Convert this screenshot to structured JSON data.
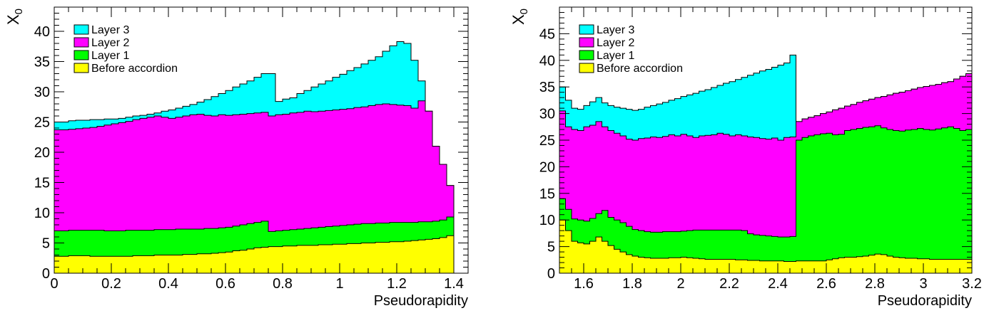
{
  "colors": {
    "layer3": "#00ffff",
    "layer2": "#ff00ff",
    "layer1": "#00ff00",
    "before": "#ffff00"
  },
  "chart_data": [
    {
      "type": "area",
      "ylabel_main": "X",
      "ylabel_sub": "0",
      "xlabel": "Pseudorapidity",
      "xlim": [
        0,
        1.45
      ],
      "ylim": [
        0,
        44
      ],
      "xticks": [
        "0",
        "0.2",
        "0.4",
        "0.6",
        "0.8",
        "1",
        "1.2",
        "1.4"
      ],
      "xtick_values": [
        0,
        0.2,
        0.4,
        0.6,
        0.8,
        1.0,
        1.2,
        1.4
      ],
      "yticks": [
        "0",
        "5",
        "10",
        "15",
        "20",
        "25",
        "30",
        "35",
        "40"
      ],
      "ytick_values": [
        0,
        5,
        10,
        15,
        20,
        25,
        30,
        35,
        40
      ],
      "bin_width": 0.025,
      "legend_position": "top-left",
      "series": [
        {
          "name": "Layer 3",
          "key": "layer3",
          "values": [
            25.0,
            25.0,
            25.2,
            25.3,
            25.3,
            25.4,
            25.4,
            25.5,
            25.5,
            25.6,
            25.8,
            26.0,
            26.1,
            26.3,
            26.5,
            26.8,
            27.0,
            27.3,
            27.6,
            27.9,
            28.3,
            28.7,
            29.2,
            29.7,
            30.2,
            30.8,
            31.3,
            31.8,
            32.4,
            33.0,
            33.0,
            28.4,
            28.8,
            29.0,
            29.7,
            30.2,
            30.8,
            31.3,
            31.8,
            32.4,
            32.9,
            33.5,
            34.0,
            34.6,
            35.2,
            35.8,
            36.7,
            37.6,
            38.3,
            38.0,
            35.2,
            31.8,
            26.8,
            21.0,
            18.0,
            14.5
          ]
        },
        {
          "name": "Layer 2",
          "key": "layer2",
          "values": [
            23.7,
            23.7,
            23.8,
            23.9,
            24.0,
            24.1,
            24.3,
            24.5,
            24.7,
            24.9,
            25.1,
            25.4,
            25.6,
            25.8,
            26.0,
            25.8,
            25.6,
            25.8,
            26.0,
            26.2,
            26.3,
            26.1,
            26.0,
            26.2,
            26.1,
            26.2,
            26.3,
            26.4,
            26.5,
            26.6,
            26.0,
            26.2,
            26.3,
            26.5,
            26.6,
            26.8,
            26.7,
            26.8,
            26.9,
            27.0,
            27.1,
            27.2,
            27.4,
            27.5,
            27.7,
            27.9,
            28.0,
            27.9,
            27.8,
            27.7,
            27.3,
            28.5,
            26.8,
            21.0,
            18.0,
            14.5
          ]
        },
        {
          "name": "Layer 1",
          "key": "layer1",
          "values": [
            7.0,
            7.0,
            7.1,
            7.1,
            7.1,
            7.1,
            7.1,
            7.0,
            7.0,
            7.0,
            7.1,
            7.1,
            7.1,
            7.1,
            7.2,
            7.2,
            7.2,
            7.3,
            7.3,
            7.3,
            7.3,
            7.4,
            7.4,
            7.5,
            7.6,
            7.8,
            8.0,
            8.2,
            8.4,
            8.6,
            6.9,
            7.0,
            7.1,
            7.2,
            7.3,
            7.4,
            7.5,
            7.6,
            7.7,
            7.8,
            7.9,
            8.0,
            8.1,
            8.2,
            8.2,
            8.3,
            8.3,
            8.4,
            8.4,
            8.4,
            8.4,
            8.5,
            8.5,
            8.6,
            8.8,
            9.3
          ]
        },
        {
          "name": "Before accordion",
          "key": "before",
          "values": [
            2.8,
            2.8,
            2.9,
            2.9,
            2.9,
            2.8,
            2.8,
            2.8,
            2.8,
            2.8,
            2.8,
            2.9,
            2.9,
            2.9,
            3.0,
            3.0,
            3.0,
            3.0,
            3.1,
            3.1,
            3.2,
            3.2,
            3.3,
            3.4,
            3.5,
            3.7,
            3.8,
            4.0,
            4.2,
            4.3,
            4.4,
            4.4,
            4.5,
            4.5,
            4.6,
            4.6,
            4.6,
            4.7,
            4.7,
            4.8,
            4.8,
            4.9,
            4.9,
            5.0,
            5.0,
            5.1,
            5.1,
            5.2,
            5.2,
            5.3,
            5.4,
            5.5,
            5.6,
            5.7,
            5.9,
            6.2
          ]
        }
      ]
    },
    {
      "type": "area",
      "ylabel_main": "X",
      "ylabel_sub": "0",
      "xlabel": "Pseudorapidity",
      "xlim": [
        1.5,
        3.2
      ],
      "ylim": [
        0,
        50
      ],
      "xticks": [
        "1.6",
        "1.8",
        "2",
        "2.2",
        "2.4",
        "2.6",
        "2.8",
        "3",
        "3.2"
      ],
      "xtick_values": [
        1.6,
        1.8,
        2.0,
        2.2,
        2.4,
        2.6,
        2.8,
        3.0,
        3.2
      ],
      "yticks": [
        "0",
        "5",
        "10",
        "15",
        "20",
        "25",
        "30",
        "35",
        "40",
        "45"
      ],
      "ytick_values": [
        0,
        5,
        10,
        15,
        20,
        25,
        30,
        35,
        40,
        45
      ],
      "bin_width": 0.025,
      "legend_position": "top-left",
      "series": [
        {
          "name": "Layer 3",
          "key": "layer3",
          "values": [
            35.0,
            32.5,
            31.0,
            30.8,
            31.5,
            32.2,
            33.0,
            32.0,
            31.5,
            31.2,
            31.0,
            30.8,
            30.6,
            30.8,
            31.2,
            31.5,
            31.8,
            32.1,
            32.5,
            32.8,
            33.2,
            33.5,
            33.8,
            34.2,
            34.5,
            34.9,
            35.3,
            35.7,
            36.0,
            36.4,
            36.8,
            37.2,
            37.6,
            38.0,
            38.3,
            38.7,
            39.1,
            39.5,
            41.0,
            28.5,
            29.0,
            29.3,
            29.6,
            30.0,
            30.3,
            30.7,
            31.0,
            31.4,
            31.7,
            32.1,
            32.4,
            32.7,
            33.0,
            33.2,
            33.5,
            33.8,
            34.0,
            34.3,
            34.6,
            34.9,
            35.1,
            35.3,
            35.5,
            35.8,
            36.0,
            36.5,
            37.0,
            37.5
          ]
        },
        {
          "name": "Layer 2",
          "key": "layer2",
          "values": [
            30.5,
            27.5,
            27.0,
            26.8,
            27.5,
            27.8,
            28.5,
            27.5,
            26.8,
            26.3,
            25.8,
            25.2,
            25.0,
            25.3,
            25.4,
            25.6,
            25.5,
            25.7,
            26.0,
            25.8,
            26.1,
            25.8,
            25.5,
            25.8,
            25.9,
            26.0,
            26.3,
            26.1,
            25.8,
            26.0,
            25.8,
            25.6,
            25.5,
            25.3,
            25.2,
            25.4,
            25.0,
            25.5,
            25.6,
            28.5,
            29.0,
            29.3,
            29.6,
            30.0,
            30.3,
            30.7,
            31.0,
            31.4,
            31.7,
            32.1,
            32.4,
            32.7,
            33.0,
            33.2,
            33.5,
            33.8,
            34.0,
            34.3,
            34.6,
            34.9,
            35.1,
            35.3,
            35.5,
            35.8,
            36.0,
            36.5,
            37.0,
            37.5
          ]
        },
        {
          "name": "Layer 1",
          "key": "layer1",
          "values": [
            14.0,
            12.0,
            10.2,
            10.0,
            9.8,
            10.3,
            11.2,
            11.8,
            10.5,
            10.0,
            9.5,
            8.8,
            8.2,
            8.0,
            7.8,
            7.7,
            7.7,
            7.8,
            7.8,
            7.8,
            7.9,
            8.0,
            8.1,
            8.1,
            8.1,
            8.1,
            8.1,
            8.1,
            8.1,
            8.1,
            8.0,
            7.4,
            7.2,
            7.1,
            7.0,
            6.9,
            6.8,
            6.8,
            6.9,
            25.0,
            25.5,
            25.8,
            26.0,
            26.2,
            26.3,
            26.0,
            26.1,
            26.8,
            27.0,
            27.2,
            27.4,
            27.5,
            27.7,
            27.3,
            27.0,
            26.8,
            26.7,
            26.9,
            27.0,
            27.2,
            27.0,
            26.9,
            27.1,
            27.3,
            27.5,
            27.2,
            26.8,
            27.0
          ]
        },
        {
          "name": "Before accordion",
          "key": "before",
          "values": [
            10.0,
            8.0,
            6.0,
            5.7,
            5.5,
            6.0,
            6.8,
            6.0,
            5.2,
            4.5,
            4.0,
            3.5,
            3.2,
            3.0,
            2.9,
            2.8,
            2.8,
            2.8,
            2.9,
            2.9,
            3.0,
            2.9,
            2.8,
            2.7,
            2.6,
            2.6,
            2.6,
            2.6,
            2.6,
            2.5,
            2.5,
            2.4,
            2.4,
            2.3,
            2.3,
            2.3,
            2.3,
            2.2,
            2.2,
            2.3,
            2.3,
            2.3,
            2.3,
            2.3,
            2.5,
            2.7,
            2.9,
            3.0,
            3.0,
            3.1,
            3.2,
            3.4,
            3.6,
            3.5,
            3.2,
            3.0,
            2.9,
            2.8,
            2.8,
            2.7,
            2.7,
            2.6,
            2.6,
            2.6,
            2.6,
            2.6,
            2.6,
            2.6
          ]
        }
      ]
    }
  ]
}
